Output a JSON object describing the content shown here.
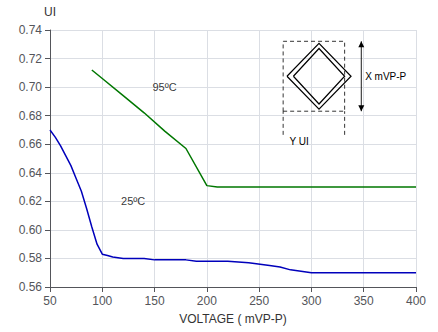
{
  "chart_data": {
    "type": "line",
    "xlabel": "VOLTAGE ( mVP-P)",
    "ylabel": "UI",
    "xlim": [
      50,
      400
    ],
    "ylim": [
      0.56,
      0.74
    ],
    "xticks": [
      50,
      100,
      150,
      200,
      250,
      300,
      350,
      400
    ],
    "yticks": [
      0.56,
      0.58,
      {
        "value": 0.6,
        "label": "0.60"
      },
      0.62,
      0.64,
      0.66,
      0.68,
      {
        "value": 0.7,
        "label": "0.70"
      },
      0.72,
      0.74
    ],
    "grid": true,
    "series": [
      {
        "color": "#0000bb",
        "x": [
          50,
          55,
          60,
          65,
          70,
          75,
          80,
          85,
          90,
          95,
          100,
          105,
          110,
          120,
          130,
          140,
          150,
          160,
          170,
          180,
          190,
          200,
          220,
          240,
          260,
          270,
          280,
          290,
          300,
          350,
          400
        ],
        "values": [
          0.67,
          0.665,
          0.659,
          0.652,
          0.645,
          0.636,
          0.627,
          0.615,
          0.602,
          0.59,
          0.583,
          0.582,
          0.581,
          0.58,
          0.58,
          0.58,
          0.579,
          0.579,
          0.579,
          0.579,
          0.578,
          0.578,
          0.578,
          0.577,
          0.575,
          0.574,
          0.572,
          0.571,
          0.57,
          0.57,
          0.57
        ]
      },
      {
        "color": "#007700",
        "x": [
          90,
          100,
          120,
          140,
          160,
          180,
          200,
          210,
          250,
          300,
          350,
          400
        ],
        "values": [
          0.712,
          0.706,
          0.694,
          0.682,
          0.669,
          0.657,
          0.631,
          0.63,
          0.63,
          0.63,
          0.63,
          0.63
        ]
      }
    ],
    "annotations": [
      {
        "text": "25ºC",
        "x": 118,
        "y": 0.62
      },
      {
        "text": "95ºC",
        "x": 148,
        "y": 0.7
      }
    ],
    "inset_labels": [
      "X mVP-P",
      "Y UI"
    ]
  }
}
